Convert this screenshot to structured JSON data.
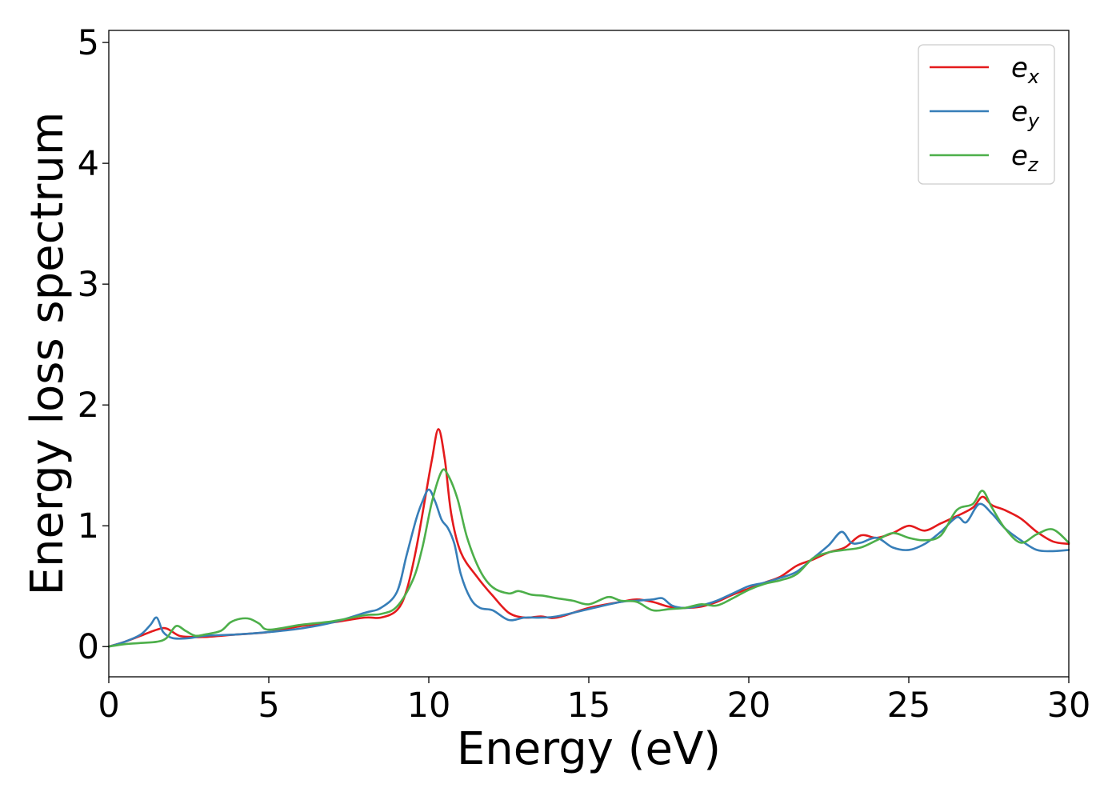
{
  "chart_data": {
    "type": "line",
    "xlabel": "Energy (eV)",
    "ylabel": "Energy loss spectrum",
    "xlim": [
      0,
      30
    ],
    "ylim": [
      -0.25,
      5.1
    ],
    "xticks": [
      "0",
      "5",
      "10",
      "15",
      "20",
      "25",
      "30"
    ],
    "yticks": [
      "0",
      "1",
      "2",
      "3",
      "4",
      "5"
    ],
    "grid": false,
    "legend_position": "top-right",
    "series": [
      {
        "name": "e_x",
        "label_base": "e",
        "label_sub": "x",
        "color": "#e41a1c",
        "x": [
          0,
          0.5,
          1.0,
          1.5,
          1.8,
          2.2,
          2.6,
          3.0,
          4.0,
          5.0,
          6.0,
          7.0,
          8.0,
          8.5,
          9.0,
          9.3,
          9.6,
          9.9,
          10.1,
          10.3,
          10.5,
          10.7,
          11.0,
          11.5,
          12.0,
          12.5,
          13.0,
          13.5,
          14.0,
          15.0,
          16.0,
          16.5,
          17.0,
          17.5,
          18.0,
          18.5,
          19.0,
          19.5,
          20.0,
          20.5,
          21.0,
          21.5,
          22.0,
          22.5,
          23.0,
          23.5,
          24.0,
          24.5,
          25.0,
          25.5,
          26.0,
          26.5,
          27.0,
          27.3,
          27.6,
          28.0,
          28.5,
          29.0,
          29.5,
          30.0
        ],
        "y": [
          0.0,
          0.04,
          0.09,
          0.14,
          0.15,
          0.09,
          0.08,
          0.08,
          0.1,
          0.12,
          0.17,
          0.2,
          0.24,
          0.24,
          0.3,
          0.46,
          0.8,
          1.25,
          1.55,
          1.8,
          1.55,
          1.1,
          0.78,
          0.58,
          0.42,
          0.28,
          0.24,
          0.25,
          0.24,
          0.32,
          0.37,
          0.39,
          0.37,
          0.33,
          0.32,
          0.33,
          0.37,
          0.43,
          0.48,
          0.53,
          0.58,
          0.67,
          0.72,
          0.78,
          0.82,
          0.92,
          0.9,
          0.94,
          1.0,
          0.96,
          1.02,
          1.08,
          1.15,
          1.24,
          1.17,
          1.13,
          1.06,
          0.95,
          0.87,
          0.85
        ]
      },
      {
        "name": "e_y",
        "label_base": "e",
        "label_sub": "y",
        "color": "#377eb8",
        "x": [
          0,
          0.5,
          1.0,
          1.3,
          1.5,
          1.7,
          2.0,
          2.5,
          3.0,
          4.0,
          5.0,
          6.0,
          7.0,
          8.0,
          8.5,
          9.0,
          9.3,
          9.6,
          9.8,
          10.0,
          10.2,
          10.4,
          10.6,
          10.8,
          11.0,
          11.3,
          11.6,
          12.0,
          12.5,
          13.0,
          13.5,
          14.0,
          15.0,
          16.0,
          16.5,
          17.0,
          17.3,
          17.6,
          18.0,
          18.5,
          19.0,
          19.5,
          20.0,
          20.5,
          21.0,
          21.5,
          22.0,
          22.5,
          22.9,
          23.2,
          23.5,
          24.0,
          24.5,
          25.0,
          25.5,
          26.0,
          26.5,
          26.8,
          27.2,
          27.6,
          28.0,
          28.5,
          29.0,
          29.5,
          30.0
        ],
        "y": [
          0.0,
          0.04,
          0.1,
          0.18,
          0.24,
          0.12,
          0.07,
          0.07,
          0.09,
          0.1,
          0.12,
          0.15,
          0.2,
          0.28,
          0.32,
          0.45,
          0.75,
          1.05,
          1.2,
          1.3,
          1.2,
          1.05,
          0.98,
          0.85,
          0.6,
          0.4,
          0.32,
          0.3,
          0.22,
          0.24,
          0.24,
          0.25,
          0.31,
          0.37,
          0.38,
          0.39,
          0.4,
          0.34,
          0.32,
          0.34,
          0.38,
          0.44,
          0.5,
          0.53,
          0.57,
          0.62,
          0.73,
          0.84,
          0.95,
          0.86,
          0.86,
          0.9,
          0.82,
          0.8,
          0.85,
          0.95,
          1.07,
          1.03,
          1.18,
          1.1,
          0.98,
          0.88,
          0.8,
          0.79,
          0.8
        ]
      },
      {
        "name": "e_z",
        "label_base": "e",
        "label_sub": "z",
        "color": "#4daf4a",
        "x": [
          0,
          0.5,
          1.0,
          1.5,
          1.8,
          2.1,
          2.4,
          2.7,
          3.0,
          3.5,
          3.8,
          4.1,
          4.4,
          4.7,
          5.0,
          6.0,
          7.0,
          8.0,
          8.5,
          9.0,
          9.5,
          9.8,
          10.1,
          10.4,
          10.6,
          10.9,
          11.2,
          11.6,
          12.0,
          12.5,
          12.8,
          13.2,
          13.6,
          14.0,
          14.5,
          15.0,
          15.6,
          16.0,
          16.5,
          17.0,
          17.5,
          18.0,
          18.5,
          19.0,
          19.5,
          20.0,
          20.5,
          21.0,
          21.5,
          22.0,
          22.5,
          23.0,
          23.5,
          24.0,
          24.5,
          25.0,
          25.5,
          26.0,
          26.5,
          27.0,
          27.3,
          27.6,
          28.0,
          28.5,
          29.0,
          29.5,
          30.0
        ],
        "y": [
          0.0,
          0.02,
          0.03,
          0.04,
          0.07,
          0.17,
          0.13,
          0.09,
          0.1,
          0.13,
          0.2,
          0.23,
          0.23,
          0.19,
          0.14,
          0.18,
          0.21,
          0.26,
          0.27,
          0.33,
          0.55,
          0.82,
          1.2,
          1.45,
          1.42,
          1.22,
          0.9,
          0.63,
          0.49,
          0.44,
          0.46,
          0.43,
          0.42,
          0.4,
          0.38,
          0.35,
          0.41,
          0.38,
          0.37,
          0.3,
          0.31,
          0.32,
          0.35,
          0.34,
          0.4,
          0.47,
          0.52,
          0.55,
          0.6,
          0.73,
          0.78,
          0.8,
          0.82,
          0.88,
          0.94,
          0.9,
          0.88,
          0.92,
          1.13,
          1.18,
          1.29,
          1.15,
          0.98,
          0.86,
          0.93,
          0.97,
          0.86
        ]
      }
    ]
  }
}
